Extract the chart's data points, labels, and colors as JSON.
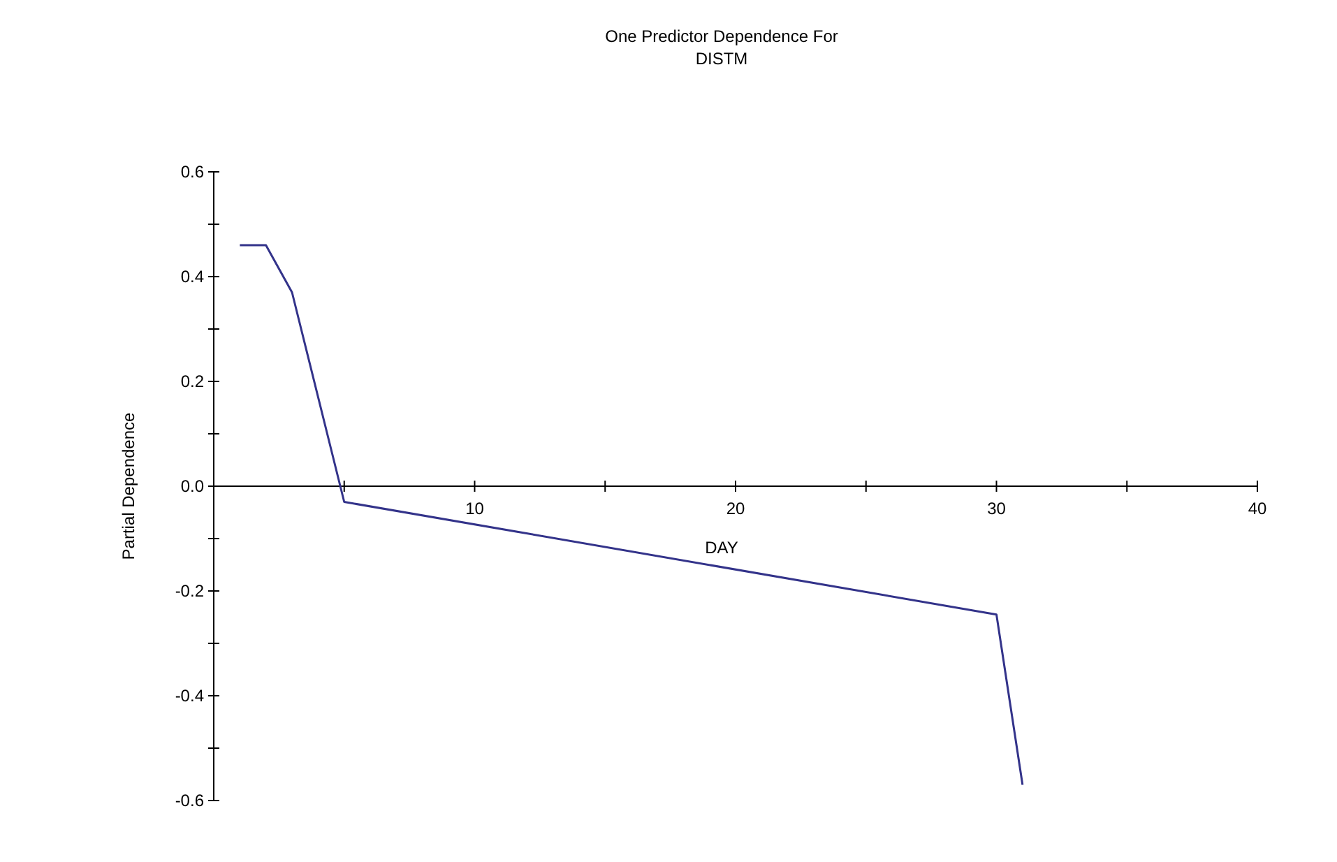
{
  "chart_data": {
    "type": "line",
    "title": "One Predictor Dependence For\nDISTM",
    "xlabel": "DAY",
    "ylabel": "Partial Dependence",
    "xlim": [
      0,
      40
    ],
    "ylim": [
      -0.6,
      0.6
    ],
    "xticks": [
      {
        "value": 5,
        "label": null
      },
      10,
      {
        "value": 15,
        "label": null
      },
      20,
      {
        "value": 25,
        "label": null
      },
      30,
      {
        "value": 35,
        "label": null
      },
      40
    ],
    "yticks": [
      -0.6,
      {
        "value": -0.5,
        "label": null
      },
      -0.4,
      {
        "value": -0.3,
        "label": null
      },
      -0.2,
      {
        "value": -0.1,
        "label": null
      },
      {
        "value": 0,
        "label": "0.0"
      },
      {
        "value": 0.1,
        "label": null
      },
      0.2,
      {
        "value": 0.3,
        "label": null
      },
      0.4,
      {
        "value": 0.5,
        "label": null
      },
      0.6
    ],
    "grid": false,
    "marker": "none",
    "line_style": "solid",
    "series": [
      {
        "color": "#33338a",
        "x": [
          1,
          2,
          3,
          5,
          30,
          31
        ],
        "values": [
          0.46,
          0.46,
          0.37,
          -0.03,
          -0.245,
          -0.57
        ]
      }
    ]
  }
}
